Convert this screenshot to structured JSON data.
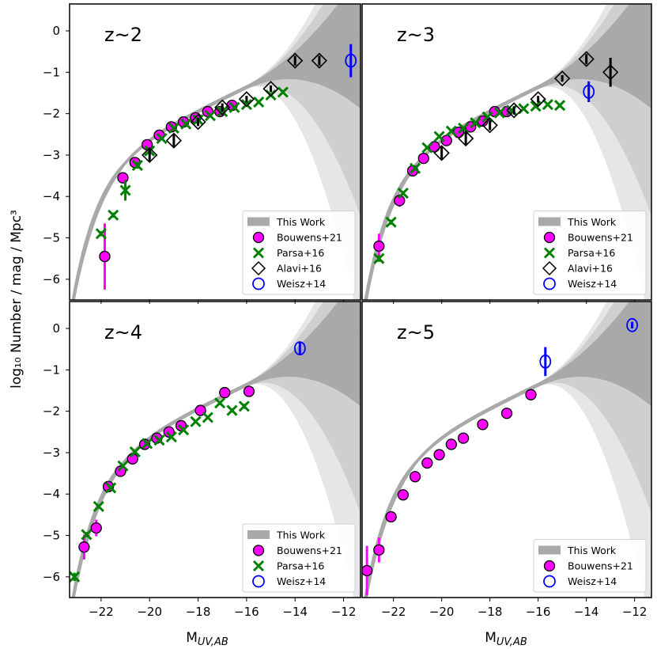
{
  "ylabel": "log₁₀ Number / mag / Mpc³",
  "xlabel_main": "M",
  "xlabel_sub": "UV,AB",
  "xlim": [
    -23.3,
    -11.3
  ],
  "ylim": [
    -6.5,
    0.65
  ],
  "xticks": [
    -22,
    -20,
    -18,
    -16,
    -14,
    -12
  ],
  "yticks": [
    0,
    -1,
    -2,
    -3,
    -4,
    -5,
    -6
  ],
  "xtick_labels": [
    "−22",
    "−20",
    "−18",
    "−16",
    "−14",
    "−12"
  ],
  "ytick_labels": [
    "0",
    "−1",
    "−2",
    "−3",
    "−4",
    "−5",
    "−6"
  ],
  "colors": {
    "bouwens": "#ff00ff",
    "parsa": "#008000",
    "alavi": "#000000",
    "weisz": "#0000ff",
    "band_dark": "#a9a9a9",
    "band_mid": "#cfcfcf",
    "band_light": "#e6e6e6"
  },
  "chart_data": [
    {
      "type": "scatter",
      "label": "z~2",
      "legend": [
        "This Work",
        "Bouwens+21",
        "Parsa+16",
        "Alavi+16",
        "Weisz+14"
      ],
      "series": [
        {
          "name": "Bouwens+21",
          "x": [
            -21.85,
            -21.1,
            -20.6,
            -20.1,
            -19.6,
            -19.1,
            -18.6,
            -18.1,
            -17.6,
            -17.1,
            -16.6
          ],
          "y": [
            -5.45,
            -3.55,
            -3.18,
            -2.75,
            -2.52,
            -2.32,
            -2.2,
            -2.1,
            -1.95,
            -1.95,
            -1.8
          ],
          "yerr": [
            0.8,
            0.1,
            0.06,
            0.05,
            0.04,
            0.04,
            0.04,
            0.04,
            0.04,
            0.04,
            0.05
          ]
        },
        {
          "name": "Parsa+16",
          "x": [
            -22.0,
            -21.5,
            -21.0,
            -20.5,
            -20.0,
            -19.5,
            -19.0,
            -18.5,
            -18.0,
            -17.5,
            -17.0,
            -16.5,
            -16.0,
            -15.5,
            -15.0,
            -14.5
          ],
          "y": [
            -4.9,
            -4.45,
            -3.85,
            -3.25,
            -2.9,
            -2.6,
            -2.35,
            -2.25,
            -2.15,
            -2.05,
            -1.95,
            -1.85,
            -1.78,
            -1.72,
            -1.55,
            -1.48
          ],
          "yerr": [
            0.06,
            0.06,
            0.25,
            0.08,
            0.05,
            0.04,
            0.04,
            0.04,
            0.04,
            0.04,
            0.04,
            0.04,
            0.04,
            0.04,
            0.05,
            0.05
          ]
        },
        {
          "name": "Alavi+16",
          "x": [
            -20.0,
            -19.0,
            -18.0,
            -17.0,
            -16.0,
            -15.0,
            -14.0,
            -13.0
          ],
          "y": [
            -3.0,
            -2.65,
            -2.2,
            -1.85,
            -1.65,
            -1.4,
            -0.72,
            -0.72
          ],
          "yerr": [
            0.15,
            0.15,
            0.1,
            0.1,
            0.08,
            0.08,
            0.12,
            0.12
          ]
        },
        {
          "name": "Weisz+14",
          "x": [
            -11.7
          ],
          "y": [
            -0.72
          ],
          "yerr": [
            0.4
          ]
        }
      ]
    },
    {
      "type": "scatter",
      "label": "z~3",
      "legend": [
        "This Work",
        "Bouwens+21",
        "Parsa+16",
        "Alavi+16",
        "Weisz+14"
      ],
      "series": [
        {
          "name": "Bouwens+21",
          "x": [
            -22.6,
            -21.75,
            -21.2,
            -20.75,
            -20.3,
            -19.8,
            -19.3,
            -18.8,
            -18.3,
            -17.8,
            -17.3
          ],
          "y": [
            -5.2,
            -4.1,
            -3.38,
            -3.08,
            -2.8,
            -2.65,
            -2.45,
            -2.32,
            -2.18,
            -1.95,
            -1.95
          ],
          "yerr": [
            0.3,
            0.15,
            0.05,
            0.04,
            0.04,
            0.04,
            0.04,
            0.04,
            0.04,
            0.05,
            0.06
          ]
        },
        {
          "name": "Parsa+16",
          "x": [
            -22.6,
            -22.1,
            -21.6,
            -21.1,
            -20.6,
            -20.1,
            -19.6,
            -19.1,
            -18.6,
            -18.1,
            -17.6,
            -17.1,
            -16.6,
            -16.1,
            -15.6,
            -15.1
          ],
          "y": [
            -5.5,
            -4.62,
            -3.92,
            -3.32,
            -2.82,
            -2.55,
            -2.42,
            -2.35,
            -2.22,
            -2.08,
            -1.98,
            -1.92,
            -1.88,
            -1.82,
            -1.78,
            -1.8
          ],
          "yerr": [
            0.08,
            0.06,
            0.05,
            0.04,
            0.04,
            0.04,
            0.04,
            0.04,
            0.04,
            0.04,
            0.04,
            0.04,
            0.04,
            0.04,
            0.04,
            0.05
          ]
        },
        {
          "name": "Alavi+16",
          "x": [
            -20.0,
            -19.0,
            -18.0,
            -17.0,
            -16.0,
            -15.0,
            -14.0,
            -13.0
          ],
          "y": [
            -2.95,
            -2.6,
            -2.28,
            -1.92,
            -1.65,
            -1.15,
            -0.68,
            -1.0
          ],
          "yerr": [
            0.15,
            0.15,
            0.12,
            0.1,
            0.08,
            0.08,
            0.12,
            0.35
          ]
        },
        {
          "name": "Weisz+14",
          "x": [
            -13.9
          ],
          "y": [
            -1.47
          ],
          "yerr": [
            0.25
          ]
        }
      ]
    },
    {
      "type": "scatter",
      "label": "z~4",
      "legend": [
        "This Work",
        "Bouwens+21",
        "Parsa+16",
        "Weisz+14"
      ],
      "series": [
        {
          "name": "Bouwens+21",
          "x": [
            -22.7,
            -22.2,
            -21.7,
            -21.2,
            -20.7,
            -20.2,
            -19.7,
            -19.2,
            -18.7,
            -17.9,
            -16.9,
            -15.9
          ],
          "y": [
            -5.28,
            -4.82,
            -3.82,
            -3.45,
            -3.15,
            -2.8,
            -2.65,
            -2.5,
            -2.35,
            -1.98,
            -1.55,
            -1.52
          ],
          "yerr": [
            0.3,
            0.2,
            0.05,
            0.04,
            0.04,
            0.04,
            0.04,
            0.04,
            0.04,
            0.05,
            0.08,
            0.1
          ]
        },
        {
          "name": "Parsa+16",
          "x": [
            -23.1,
            -22.6,
            -22.1,
            -21.6,
            -21.1,
            -20.6,
            -20.1,
            -19.6,
            -19.1,
            -18.6,
            -18.1,
            -17.6,
            -17.1,
            -16.6,
            -16.1
          ],
          "y": [
            -6.0,
            -4.98,
            -4.3,
            -3.85,
            -3.32,
            -2.98,
            -2.78,
            -2.7,
            -2.62,
            -2.45,
            -2.25,
            -2.15,
            -1.8,
            -1.98,
            -1.88
          ],
          "yerr": [
            0.1,
            0.06,
            0.05,
            0.04,
            0.04,
            0.04,
            0.04,
            0.04,
            0.04,
            0.04,
            0.04,
            0.04,
            0.05,
            0.05,
            0.06
          ]
        },
        {
          "name": "Weisz+14",
          "x": [
            -13.8
          ],
          "y": [
            -0.48
          ],
          "yerr": [
            0.15
          ]
        }
      ]
    },
    {
      "type": "scatter",
      "label": "z~5",
      "legend": [
        "This Work",
        "Bouwens+21",
        "Weisz+14"
      ],
      "series": [
        {
          "name": "Bouwens+21",
          "x": [
            -23.1,
            -22.6,
            -22.1,
            -21.6,
            -21.1,
            -20.6,
            -20.1,
            -19.6,
            -19.1,
            -18.3,
            -17.3,
            -16.3
          ],
          "y": [
            -5.85,
            -5.35,
            -4.55,
            -4.02,
            -3.58,
            -3.25,
            -3.05,
            -2.8,
            -2.65,
            -2.32,
            -2.05,
            -1.6
          ],
          "yerr": [
            0.6,
            0.3,
            0.08,
            0.05,
            0.05,
            0.04,
            0.04,
            0.04,
            0.04,
            0.04,
            0.05,
            0.06
          ]
        },
        {
          "name": "Weisz+14",
          "x": [
            -15.7
          ],
          "y": [
            -0.8
          ],
          "yerr": [
            0.35
          ]
        },
        {
          "name": "Weisz+14 (2)",
          "x": [
            -12.1
          ],
          "y": [
            0.08
          ],
          "yerr": [
            0.08
          ]
        }
      ]
    }
  ]
}
